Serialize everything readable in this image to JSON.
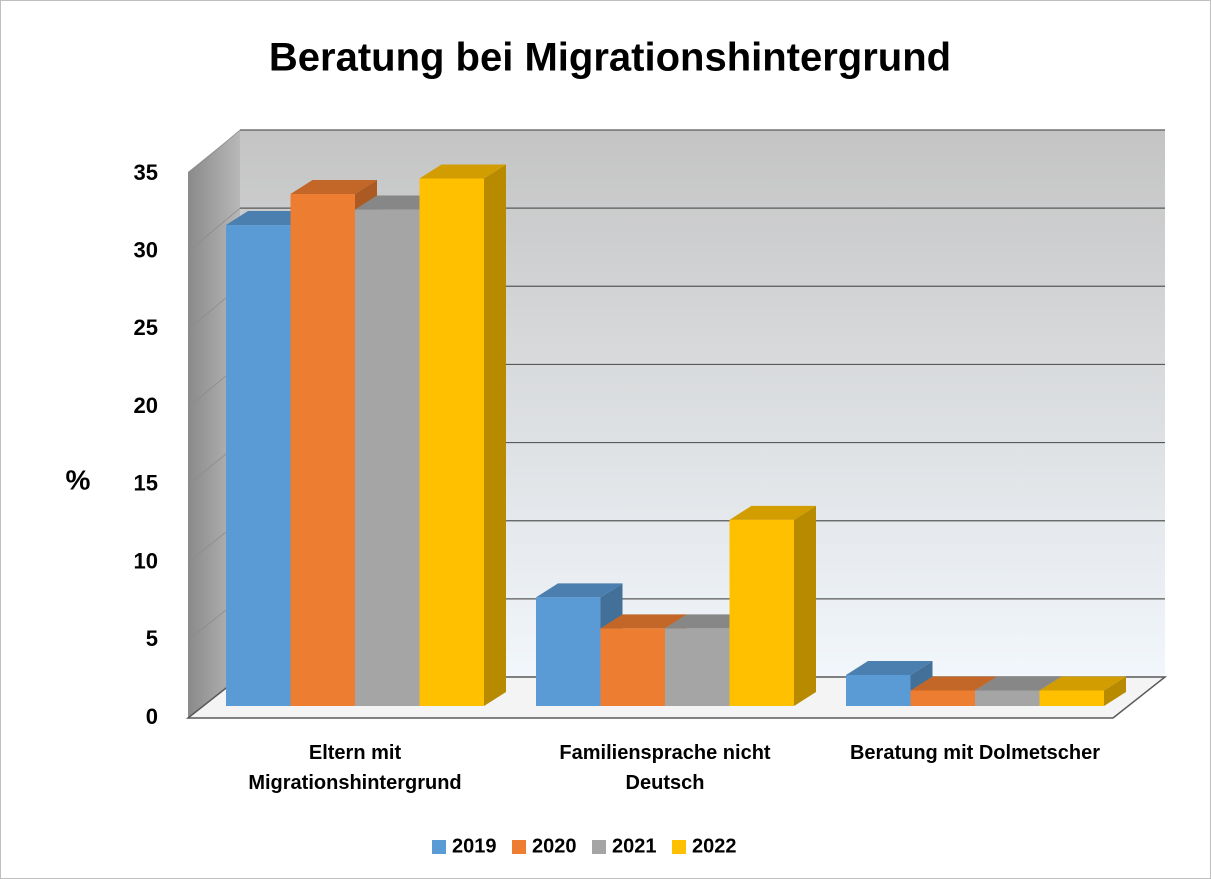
{
  "chart_data": {
    "type": "bar3d",
    "title": "Beratung bei Migrationshintergrund",
    "y_label": "%",
    "categories": [
      "Eltern mit Migrationshintergrund",
      "Familiensprache nicht Deutsch",
      "Beratung mit Dolmetscher"
    ],
    "series": [
      {
        "name": "2019",
        "color": "#5b9bd5",
        "values": [
          31,
          7,
          2
        ]
      },
      {
        "name": "2020",
        "color": "#ed7d31",
        "values": [
          33,
          5,
          1
        ]
      },
      {
        "name": "2021",
        "color": "#a5a5a5",
        "values": [
          32,
          5,
          1
        ]
      },
      {
        "name": "2022",
        "color": "#ffc000",
        "values": [
          34,
          12,
          1
        ]
      }
    ],
    "ylim": [
      0,
      35
    ],
    "yticks": [
      0,
      5,
      10,
      15,
      20,
      25,
      30,
      35
    ],
    "grid": true,
    "legend": "bottom"
  }
}
